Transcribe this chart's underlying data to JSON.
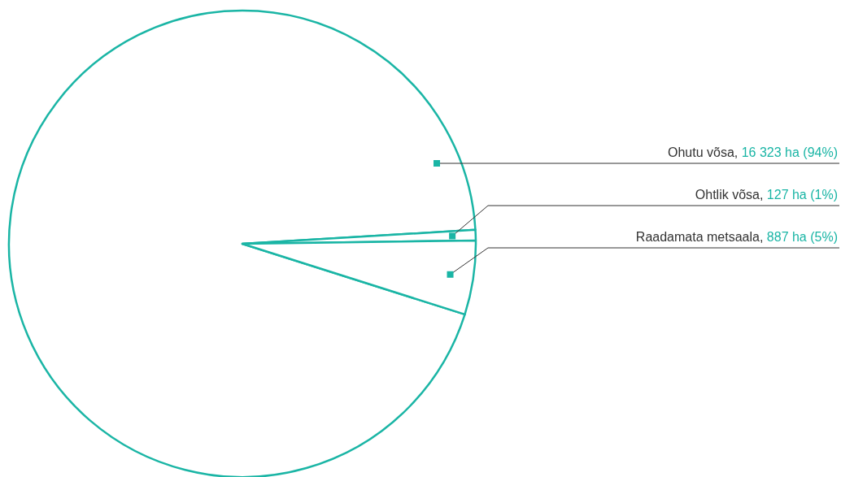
{
  "chart_data": {
    "type": "pie",
    "categories": [
      "Ohutu võsa",
      "Ohtlik võsa",
      "Raadamata metsaala"
    ],
    "values": [
      16323,
      127,
      887
    ],
    "value_labels": [
      ", 16 323 ha (94%)",
      ", 127 ha (1%)",
      ", 887 ha (5%)"
    ],
    "colors": [
      "#1ab5a5",
      "#1ab5a5",
      "#1ab5a5"
    ]
  }
}
